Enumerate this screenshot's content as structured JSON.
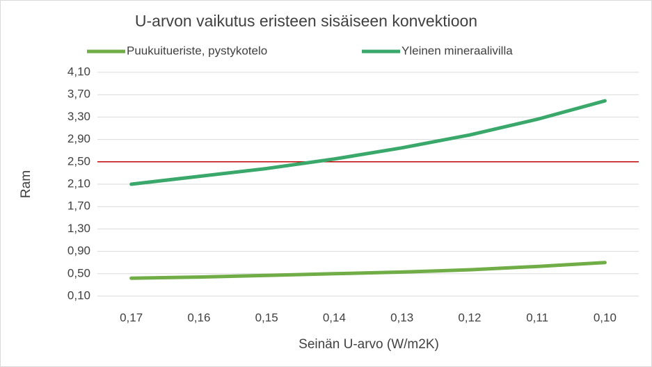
{
  "chart_data": {
    "type": "line",
    "title": "U-arvon vaikutus eristeen sisäiseen konvektioon",
    "x_label": "Seinän U-arvo (W/m2K)",
    "y_label": "Ram",
    "categories": [
      "0,17",
      "0,16",
      "0,15",
      "0,14",
      "0,13",
      "0,12",
      "0,11",
      "0,10"
    ],
    "series": [
      {
        "name": "Puukuitueriste, pystykotelo",
        "color": "#70ad47",
        "values": [
          0.42,
          0.44,
          0.47,
          0.5,
          0.53,
          0.57,
          0.63,
          0.7
        ]
      },
      {
        "name": "Yleinen mineraalivilla",
        "color": "#3aa86a",
        "values": [
          2.1,
          2.24,
          2.38,
          2.55,
          2.75,
          2.98,
          3.26,
          3.59
        ]
      }
    ],
    "ylim": [
      0.1,
      4.1
    ],
    "yticks": [
      {
        "value": 0.1,
        "label": "0,10"
      },
      {
        "value": 0.5,
        "label": "0,50"
      },
      {
        "value": 0.9,
        "label": "0,90"
      },
      {
        "value": 1.3,
        "label": "1,30"
      },
      {
        "value": 1.7,
        "label": "1,70"
      },
      {
        "value": 2.1,
        "label": "2,10"
      },
      {
        "value": 2.5,
        "label": "2,50"
      },
      {
        "value": 2.9,
        "label": "2,90"
      },
      {
        "value": 3.3,
        "label": "3,30"
      },
      {
        "value": 3.7,
        "label": "3,70"
      },
      {
        "value": 4.1,
        "label": "4,10"
      }
    ],
    "reference_line": {
      "value": 2.5,
      "color": "#c00000"
    },
    "grid": true,
    "legend": "top"
  }
}
